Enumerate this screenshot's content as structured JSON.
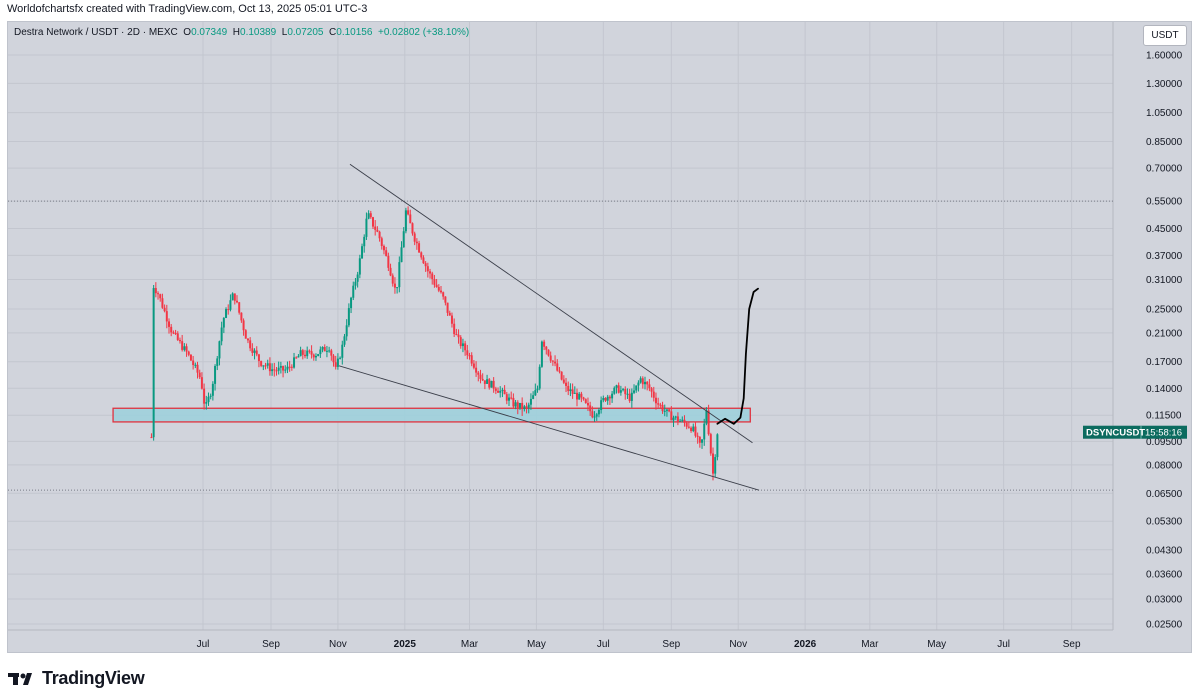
{
  "header": {
    "credit": "Worldofchartsfx created with TradingView.com, Oct 13, 2025 05:01 UTC-3"
  },
  "legend": {
    "symbol": "Destra Network / USDT · 2D · MEXC",
    "open": "0.07349",
    "high": "0.10389",
    "low": "0.07205",
    "close": "0.10156",
    "change": "+0.02802 (+38.10%)"
  },
  "currency_button": "USDT",
  "footer": {
    "brand": "TradingView"
  },
  "colors": {
    "up": "#089981",
    "down": "#f23645",
    "zone_fill": "#9fd0dc",
    "zone_border": "#e0323f",
    "background": "#d1d4dc"
  },
  "chart_data": {
    "type": "candlestick",
    "symbol": "DSYNCUSDT",
    "timeframe": "2D",
    "y_scale": "log",
    "y_ticks": [
      "1.60000",
      "1.30000",
      "1.05000",
      "0.85000",
      "0.70000",
      "0.55000",
      "0.45000",
      "0.37000",
      "0.31000",
      "0.25000",
      "0.21000",
      "0.17000",
      "0.14000",
      "0.11500",
      "0.09500",
      "0.08000",
      "0.06500",
      "0.05300",
      "0.04300",
      "0.03600",
      "0.03000",
      "0.02500"
    ],
    "y_tick_values": [
      1.6,
      1.3,
      1.05,
      0.85,
      0.7,
      0.55,
      0.45,
      0.37,
      0.31,
      0.25,
      0.21,
      0.17,
      0.14,
      0.115,
      0.095,
      0.08,
      0.065,
      0.053,
      0.043,
      0.036,
      0.03,
      0.025
    ],
    "x_ticks": [
      {
        "label": "Jul",
        "date": "2024-07-01"
      },
      {
        "label": "Sep",
        "date": "2024-09-01"
      },
      {
        "label": "Nov",
        "date": "2024-11-01"
      },
      {
        "label": "2025",
        "date": "2025-01-01"
      },
      {
        "label": "Mar",
        "date": "2025-03-01"
      },
      {
        "label": "May",
        "date": "2025-05-01"
      },
      {
        "label": "Jul",
        "date": "2025-07-01"
      },
      {
        "label": "Sep",
        "date": "2025-09-01"
      },
      {
        "label": "Nov",
        "date": "2025-11-01"
      },
      {
        "label": "2026",
        "date": "2026-01-01"
      },
      {
        "label": "Mar",
        "date": "2026-03-01"
      },
      {
        "label": "May",
        "date": "2026-05-01"
      },
      {
        "label": "Jul",
        "date": "2026-07-01"
      },
      {
        "label": "Sep",
        "date": "2026-09-01"
      }
    ],
    "price_label": {
      "symbol": "DSYNCUSDT",
      "countdown": "15:58:16",
      "price": 0.10156
    },
    "dotted_levels": [
      0.55,
      0.0665
    ],
    "support_zone": {
      "date_start": "2024-04-10",
      "date_end": "2025-11-12",
      "price_low": 0.1095,
      "price_high": 0.121
    },
    "upper_trendline": {
      "from": {
        "date": "2024-11-12",
        "price": 0.72
      },
      "to": {
        "date": "2025-11-14",
        "price": 0.094
      }
    },
    "lower_trendline": {
      "from": {
        "date": "2024-11-02",
        "price": 0.165
      },
      "to": {
        "date": "2025-11-20",
        "price": 0.0665
      }
    },
    "projection_path": [
      {
        "date": "2025-10-13",
        "price": 0.108
      },
      {
        "date": "2025-10-20",
        "price": 0.112
      },
      {
        "date": "2025-10-28",
        "price": 0.108
      },
      {
        "date": "2025-11-03",
        "price": 0.113
      },
      {
        "date": "2025-11-06",
        "price": 0.13
      },
      {
        "date": "2025-11-08",
        "price": 0.18
      },
      {
        "date": "2025-11-11",
        "price": 0.25
      },
      {
        "date": "2025-11-15",
        "price": 0.283
      },
      {
        "date": "2025-11-19",
        "price": 0.29
      }
    ],
    "price_path": [
      {
        "date": "2024-05-15",
        "price": 0.098
      },
      {
        "date": "2024-05-16",
        "price": 0.3
      },
      {
        "date": "2024-05-21",
        "price": 0.28
      },
      {
        "date": "2024-06-03",
        "price": 0.21
      },
      {
        "date": "2024-06-17",
        "price": 0.18
      },
      {
        "date": "2024-06-29",
        "price": 0.15
      },
      {
        "date": "2024-07-03",
        "price": 0.12
      },
      {
        "date": "2024-07-09",
        "price": 0.14
      },
      {
        "date": "2024-07-19",
        "price": 0.23
      },
      {
        "date": "2024-07-29",
        "price": 0.28
      },
      {
        "date": "2024-08-10",
        "price": 0.2
      },
      {
        "date": "2024-08-22",
        "price": 0.17
      },
      {
        "date": "2024-09-03",
        "price": 0.16
      },
      {
        "date": "2024-09-15",
        "price": 0.16
      },
      {
        "date": "2024-09-28",
        "price": 0.18
      },
      {
        "date": "2024-10-12",
        "price": 0.18
      },
      {
        "date": "2024-10-24",
        "price": 0.19
      },
      {
        "date": "2024-10-30",
        "price": 0.16
      },
      {
        "date": "2024-11-05",
        "price": 0.19
      },
      {
        "date": "2024-11-13",
        "price": 0.27
      },
      {
        "date": "2024-11-20",
        "price": 0.34
      },
      {
        "date": "2024-11-28",
        "price": 0.5
      },
      {
        "date": "2024-12-08",
        "price": 0.43
      },
      {
        "date": "2024-12-18",
        "price": 0.34
      },
      {
        "date": "2024-12-24",
        "price": 0.28
      },
      {
        "date": "2025-01-02",
        "price": 0.51
      },
      {
        "date": "2025-01-10",
        "price": 0.42
      },
      {
        "date": "2025-01-22",
        "price": 0.33
      },
      {
        "date": "2025-02-05",
        "price": 0.27
      },
      {
        "date": "2025-02-18",
        "price": 0.2
      },
      {
        "date": "2025-02-28",
        "price": 0.18
      },
      {
        "date": "2025-03-12",
        "price": 0.15
      },
      {
        "date": "2025-03-26",
        "price": 0.14
      },
      {
        "date": "2025-04-10",
        "price": 0.125
      },
      {
        "date": "2025-04-22",
        "price": 0.12
      },
      {
        "date": "2025-05-02",
        "price": 0.14
      },
      {
        "date": "2025-05-06",
        "price": 0.2
      },
      {
        "date": "2025-05-16",
        "price": 0.17
      },
      {
        "date": "2025-05-28",
        "price": 0.14
      },
      {
        "date": "2025-06-10",
        "price": 0.13
      },
      {
        "date": "2025-06-22",
        "price": 0.115
      },
      {
        "date": "2025-07-02",
        "price": 0.13
      },
      {
        "date": "2025-07-14",
        "price": 0.14
      },
      {
        "date": "2025-07-26",
        "price": 0.13
      },
      {
        "date": "2025-08-04",
        "price": 0.15
      },
      {
        "date": "2025-08-12",
        "price": 0.14
      },
      {
        "date": "2025-08-20",
        "price": 0.125
      },
      {
        "date": "2025-08-30",
        "price": 0.115
      },
      {
        "date": "2025-09-10",
        "price": 0.11
      },
      {
        "date": "2025-09-20",
        "price": 0.105
      },
      {
        "date": "2025-09-28",
        "price": 0.09
      },
      {
        "date": "2025-10-03",
        "price": 0.12
      },
      {
        "date": "2025-10-09",
        "price": 0.075
      },
      {
        "date": "2025-10-13",
        "price": 0.10156
      }
    ]
  }
}
